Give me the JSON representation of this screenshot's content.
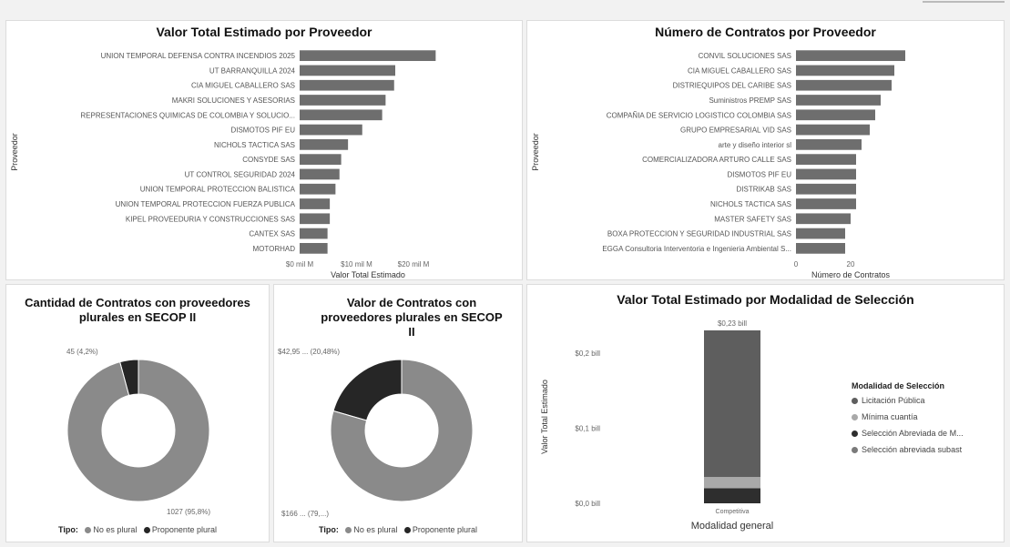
{
  "panels": {
    "valor_proveedor": {
      "title": "Valor Total Estimado por Proveedor",
      "xlabel": "Valor Total Estimado",
      "ylabel": "Proveedor",
      "ticks": [
        "$0 mil M",
        "$10 mil M",
        "$20 mil M"
      ]
    },
    "contratos_proveedor": {
      "title": "Número de Contratos por Proveedor",
      "xlabel": "Número de Contratos",
      "ylabel": "Proveedor",
      "ticks": [
        "0",
        "20"
      ]
    },
    "cantidad_plurales": {
      "title": "Cantidad de Contratos con proveedores plurales en SECOP II",
      "label_small": "45 (4,2%)",
      "label_large": "1027 (95,8%)",
      "legend_title": "Tipo:",
      "legend": [
        "No es plural",
        "Proponente plural"
      ]
    },
    "valor_plurales": {
      "title": "Valor de Contratos con proveedores plurales en SECOP II",
      "label_small": "$42,95 ... (20,48%)",
      "label_large": "$166 ... (79,...)",
      "legend_title": "Tipo:",
      "legend": [
        "No es plural",
        "Proponente plural"
      ]
    },
    "modalidad": {
      "title": "Valor Total Estimado por Modalidad de Selección",
      "xlabel": "Modalidad general",
      "ylabel": "Valor Total Estimado",
      "ticks": [
        "$0,0 bill",
        "$0,1 bill",
        "$0,2 bill"
      ],
      "total_label": "$0,23 bill",
      "category": "Competitiva",
      "legend_title": "Modalidad de Selección",
      "legend": [
        "Licitación Pública",
        "Mínima cuantía",
        "Selección Abreviada de M...",
        "Selección abreviada subast"
      ]
    }
  },
  "colors": {
    "bar": "#6e6e6e",
    "donut_major": "#8a8a8a",
    "donut_minor": "#262626",
    "seg_licitacion": "#5e5e5e",
    "seg_minima": "#a9a9a9",
    "seg_abreviada_m": "#2e2e2e",
    "seg_subasta": "#7a7a7a"
  },
  "chart_data": [
    {
      "type": "bar",
      "orientation": "horizontal",
      "title": "Valor Total Estimado por Proveedor",
      "xlabel": "Valor Total Estimado",
      "ylabel": "Proveedor",
      "unit": "mil M",
      "xlim": [
        0,
        24
      ],
      "categories": [
        "UNION TEMPORAL DEFENSA CONTRA INCENDIOS 2025",
        "UT BARRANQUILLA 2024",
        "CIA MIGUEL CABALLERO SAS",
        "MAKRI SOLUCIONES Y ASESORIAS",
        "REPRESENTACIONES QUIMICAS DE COLOMBIA Y SOLUCIO...",
        "DISMOTOS PIF EU",
        "NICHOLS TACTICA SAS",
        "CONSYDE SAS",
        "UT CONTROL SEGURIDAD 2024",
        "UNION TEMPORAL PROTECCION BALISTICA",
        "UNION TEMPORAL PROTECCION FUERZA PUBLICA",
        "KIPEL PROVEEDURIA Y CONSTRUCCIONES SAS",
        "CANTEX SAS",
        "MOTORHAD"
      ],
      "values": [
        23.9,
        16.8,
        16.6,
        15.1,
        14.5,
        11.0,
        8.5,
        7.3,
        7.0,
        6.3,
        5.3,
        5.3,
        4.9,
        4.9
      ]
    },
    {
      "type": "bar",
      "orientation": "horizontal",
      "title": "Número de Contratos por Proveedor",
      "xlabel": "Número de Contratos",
      "ylabel": "Proveedor",
      "xlim": [
        0,
        40
      ],
      "categories": [
        "CONVIL SOLUCIONES SAS",
        "CIA MIGUEL CABALLERO SAS",
        "DISTRIEQUIPOS DEL CARIBE SAS",
        "Suministros PREMP SAS",
        "COMPAÑIA DE SERVICIO LOGISTICO COLOMBIA SAS",
        "GRUPO EMPRESARIAL VID SAS",
        "arte y diseño interior sl",
        "COMERCIALIZADORA ARTURO CALLE SAS",
        "DISMOTOS PIF EU",
        "DISTRIKAB SAS",
        "NICHOLS TACTICA SAS",
        "MASTER SAFETY SAS",
        "BOXA PROTECCION Y SEGURIDAD INDUSTRIAL SAS",
        "EGGA Consultoria Interventoria e Ingenieria Ambiental S..."
      ],
      "values": [
        40,
        36,
        35,
        31,
        29,
        27,
        24,
        22,
        22,
        22,
        22,
        20,
        18,
        18
      ]
    },
    {
      "type": "pie",
      "title": "Cantidad de Contratos con proveedores plurales en SECOP II",
      "categories": [
        "No es plural",
        "Proponente plural"
      ],
      "values": [
        1027,
        45
      ],
      "percentages": [
        95.8,
        4.2
      ]
    },
    {
      "type": "pie",
      "title": "Valor de Contratos con proveedores plurales en SECOP II",
      "categories": [
        "No es plural",
        "Proponente plural"
      ],
      "values": [
        166,
        42.95
      ],
      "percentages": [
        79.52,
        20.48
      ]
    },
    {
      "type": "bar",
      "stacked": true,
      "title": "Valor Total Estimado por Modalidad de Selección",
      "xlabel": "Modalidad general",
      "ylabel": "Valor Total Estimado",
      "unit": "bill",
      "ylim": [
        0,
        0.23
      ],
      "categories": [
        "Competitiva"
      ],
      "series": [
        {
          "name": "Licitación Pública",
          "values": [
            0.195
          ]
        },
        {
          "name": "Mínima cuantía",
          "values": [
            0.015
          ]
        },
        {
          "name": "Selección Abreviada de M...",
          "values": [
            0.02
          ]
        },
        {
          "name": "Selección abreviada subast",
          "values": [
            0.0
          ]
        }
      ],
      "total": 0.23,
      "legend_position": "right"
    }
  ]
}
